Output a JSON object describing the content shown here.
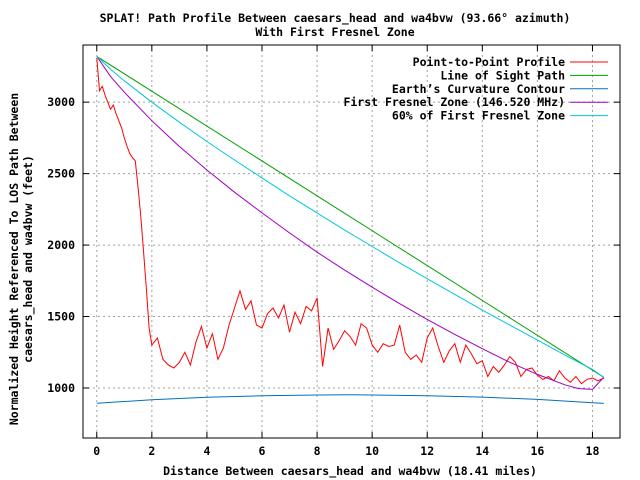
{
  "chart_data": {
    "type": "line",
    "title": "SPLAT! Path Profile Between caesars_head and wa4bvw (93.66° azimuth)",
    "subtitle": "With First Fresnel Zone",
    "xlabel": "Distance Between caesars_head and wa4bvw (18.41 miles)",
    "ylabel_line1": "Normalized Height Referenced To LOS Path Between",
    "ylabel_line2": "caesars_head and wa4bvw (feet)",
    "xlim": [
      -0.5,
      19.0
    ],
    "ylim": [
      650,
      3400
    ],
    "x_ticks": [
      0,
      2,
      4,
      6,
      8,
      10,
      12,
      14,
      16,
      18
    ],
    "x_tick_labels": [
      "0",
      "2",
      "4",
      "6",
      "8",
      "10",
      "12",
      "14",
      "16",
      "18"
    ],
    "y_ticks": [
      1000,
      1500,
      2000,
      2500,
      3000
    ],
    "y_tick_labels": [
      "1000",
      "1500",
      "2000",
      "2500",
      "3000"
    ],
    "grid": true,
    "legend_position": "top-right",
    "series": [
      {
        "name": "Point-to-Point Profile",
        "color": "#ff0000",
        "x": [
          0,
          0.1,
          0.2,
          0.3,
          0.4,
          0.5,
          0.6,
          0.7,
          0.8,
          0.9,
          1.0,
          1.1,
          1.2,
          1.3,
          1.4,
          1.5,
          1.6,
          1.7,
          1.8,
          1.9,
          2.0,
          2.2,
          2.4,
          2.6,
          2.8,
          3.0,
          3.2,
          3.4,
          3.6,
          3.8,
          4.0,
          4.2,
          4.4,
          4.6,
          4.8,
          5.0,
          5.2,
          5.4,
          5.6,
          5.8,
          6.0,
          6.2,
          6.4,
          6.6,
          6.8,
          7.0,
          7.2,
          7.4,
          7.6,
          7.8,
          8.0,
          8.2,
          8.4,
          8.6,
          8.8,
          9.0,
          9.2,
          9.4,
          9.6,
          9.8,
          10.0,
          10.2,
          10.4,
          10.6,
          10.8,
          11.0,
          11.2,
          11.4,
          11.6,
          11.8,
          12.0,
          12.2,
          12.4,
          12.6,
          12.8,
          13.0,
          13.2,
          13.4,
          13.6,
          13.8,
          14.0,
          14.2,
          14.4,
          14.6,
          14.8,
          15.0,
          15.2,
          15.4,
          15.6,
          15.8,
          16.0,
          16.2,
          16.4,
          16.6,
          16.8,
          17.0,
          17.2,
          17.4,
          17.6,
          17.8,
          18.0,
          18.2,
          18.41
        ],
        "values": [
          3310,
          3080,
          3110,
          3050,
          3000,
          2950,
          2980,
          2920,
          2870,
          2820,
          2750,
          2690,
          2640,
          2610,
          2590,
          2400,
          2200,
          1950,
          1700,
          1420,
          1300,
          1350,
          1200,
          1160,
          1140,
          1180,
          1250,
          1160,
          1320,
          1430,
          1280,
          1380,
          1200,
          1280,
          1440,
          1560,
          1680,
          1550,
          1610,
          1440,
          1420,
          1520,
          1560,
          1490,
          1580,
          1390,
          1530,
          1450,
          1570,
          1540,
          1630,
          1150,
          1420,
          1270,
          1330,
          1400,
          1360,
          1300,
          1450,
          1420,
          1300,
          1250,
          1310,
          1290,
          1300,
          1440,
          1250,
          1200,
          1230,
          1180,
          1350,
          1420,
          1290,
          1180,
          1260,
          1310,
          1180,
          1300,
          1240,
          1170,
          1190,
          1080,
          1150,
          1110,
          1160,
          1220,
          1180,
          1080,
          1130,
          1140,
          1090,
          1060,
          1080,
          1050,
          1120,
          1070,
          1040,
          1080,
          1030,
          1060,
          1070,
          1050,
          1070
        ]
      },
      {
        "name": "Line of Sight Path",
        "color": "#00a000",
        "x": [
          0,
          18.41
        ],
        "values": [
          3320,
          1075
        ]
      },
      {
        "name": "Earth’s Curvature Contour",
        "color": "#0070c0",
        "x": [
          0,
          2,
          4,
          6,
          8,
          9.2,
          10,
          12,
          14,
          16,
          18,
          18.41
        ],
        "values": [
          893,
          918,
          935,
          945,
          951,
          952,
          951,
          946,
          936,
          920,
          897,
          892
        ]
      },
      {
        "name": "First Fresnel Zone (146.520 MHz)",
        "color": "#a000c0",
        "x": [
          0,
          0.5,
          1,
          2,
          3,
          4,
          5,
          6,
          7,
          8,
          9,
          10,
          11,
          12,
          13,
          14,
          15,
          16,
          17,
          17.5,
          18,
          18.41
        ],
        "values": [
          3320,
          3180,
          3070,
          2870,
          2690,
          2525,
          2370,
          2225,
          2085,
          1950,
          1825,
          1705,
          1590,
          1480,
          1375,
          1275,
          1180,
          1095,
          1022,
          996,
          990,
          1075
        ]
      },
      {
        "name": "60% of First Fresnel Zone",
        "color": "#00c8d8",
        "x": [
          0,
          0.5,
          1,
          2,
          3,
          4,
          5,
          6,
          7,
          8,
          9,
          10,
          11,
          12,
          13,
          14,
          15,
          16,
          17,
          17.5,
          18,
          18.41
        ],
        "values": [
          3320,
          3230,
          3150,
          3000,
          2860,
          2725,
          2595,
          2470,
          2345,
          2225,
          2105,
          1990,
          1875,
          1765,
          1655,
          1545,
          1440,
          1335,
          1230,
          1180,
          1130,
          1075
        ]
      }
    ]
  }
}
